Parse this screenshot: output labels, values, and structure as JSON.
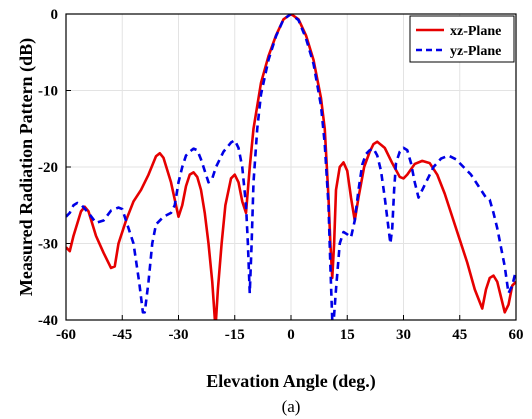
{
  "chart_data": {
    "type": "line",
    "xlabel": "Elevation Angle (deg.)",
    "ylabel": "Measured Radiation Pattern (dB)",
    "caption": "(a)",
    "xlim": [
      -60,
      60
    ],
    "ylim": [
      -40,
      0
    ],
    "xticks": [
      "-60",
      "-45",
      "-30",
      "-15",
      "0",
      "15",
      "30",
      "45",
      "60"
    ],
    "yticks": [
      "0",
      "-10",
      "-20",
      "-30",
      "-40"
    ],
    "grid": true,
    "legend_position": "top-right",
    "series": [
      {
        "name": "xz-Plane",
        "color": "#e60000",
        "style": "solid",
        "points": [
          [
            -60,
            -30.5
          ],
          [
            -59,
            -31
          ],
          [
            -58,
            -29
          ],
          [
            -56,
            -25.8
          ],
          [
            -55,
            -25.2
          ],
          [
            -54,
            -25.8
          ],
          [
            -52,
            -29
          ],
          [
            -50,
            -31.2
          ],
          [
            -48,
            -33.2
          ],
          [
            -47,
            -33
          ],
          [
            -46,
            -30
          ],
          [
            -44,
            -27
          ],
          [
            -42,
            -24.5
          ],
          [
            -40,
            -23
          ],
          [
            -38,
            -21
          ],
          [
            -36,
            -18.6
          ],
          [
            -35,
            -18.2
          ],
          [
            -34,
            -18.8
          ],
          [
            -32,
            -22
          ],
          [
            -30,
            -26.5
          ],
          [
            -29,
            -25
          ],
          [
            -28,
            -22.5
          ],
          [
            -27,
            -21
          ],
          [
            -26,
            -20.7
          ],
          [
            -25,
            -21.3
          ],
          [
            -24,
            -23
          ],
          [
            -23,
            -26
          ],
          [
            -22,
            -30
          ],
          [
            -21,
            -35
          ],
          [
            -20.3,
            -40
          ],
          [
            -20,
            -40
          ],
          [
            -19.5,
            -36
          ],
          [
            -18.5,
            -30
          ],
          [
            -17.5,
            -25
          ],
          [
            -16,
            -21.5
          ],
          [
            -15,
            -21
          ],
          [
            -14,
            -22
          ],
          [
            -13,
            -24.5
          ],
          [
            -12,
            -26
          ],
          [
            -11,
            -20
          ],
          [
            -10,
            -15
          ],
          [
            -9,
            -12
          ],
          [
            -8,
            -9
          ],
          [
            -6,
            -5.5
          ],
          [
            -4,
            -2.8
          ],
          [
            -2,
            -0.7
          ],
          [
            0,
            0
          ],
          [
            2,
            -0.7
          ],
          [
            4,
            -2.8
          ],
          [
            6,
            -6
          ],
          [
            8,
            -11
          ],
          [
            9,
            -15
          ],
          [
            10,
            -24
          ],
          [
            10.5,
            -30
          ],
          [
            11,
            -34.5
          ],
          [
            11.5,
            -30
          ],
          [
            12,
            -23
          ],
          [
            13,
            -20
          ],
          [
            14,
            -19.4
          ],
          [
            15,
            -20.5
          ],
          [
            16,
            -24
          ],
          [
            17,
            -27
          ],
          [
            18,
            -24
          ],
          [
            19.5,
            -20
          ],
          [
            21,
            -18
          ],
          [
            22,
            -17
          ],
          [
            23,
            -16.7
          ],
          [
            25,
            -17.5
          ],
          [
            27,
            -19.5
          ],
          [
            29,
            -21.3
          ],
          [
            30,
            -21.5
          ],
          [
            31,
            -21
          ],
          [
            33,
            -19.6
          ],
          [
            35,
            -19.2
          ],
          [
            37,
            -19.5
          ],
          [
            39,
            -21
          ],
          [
            41,
            -23.5
          ],
          [
            43,
            -26.5
          ],
          [
            45,
            -29.5
          ],
          [
            47,
            -32.5
          ],
          [
            49,
            -36
          ],
          [
            51,
            -38.5
          ],
          [
            52,
            -36
          ],
          [
            53,
            -34.5
          ],
          [
            54,
            -34.2
          ],
          [
            55,
            -35
          ],
          [
            56,
            -37
          ],
          [
            57,
            -39
          ],
          [
            58,
            -38
          ],
          [
            59,
            -35.5
          ],
          [
            60,
            -35
          ]
        ]
      },
      {
        "name": "yz-Plane",
        "color": "#0000e6",
        "style": "dashed",
        "points": [
          [
            -60,
            -26.5
          ],
          [
            -59,
            -26
          ],
          [
            -58,
            -25
          ],
          [
            -57,
            -24.7
          ],
          [
            -56,
            -24.9
          ],
          [
            -54,
            -26
          ],
          [
            -52,
            -27.3
          ],
          [
            -50,
            -27
          ],
          [
            -48,
            -25.7
          ],
          [
            -46,
            -25.3
          ],
          [
            -45,
            -25.5
          ],
          [
            -44,
            -27
          ],
          [
            -42,
            -30
          ],
          [
            -40.5,
            -35
          ],
          [
            -39.5,
            -39
          ],
          [
            -39,
            -39
          ],
          [
            -38,
            -35
          ],
          [
            -37,
            -30
          ],
          [
            -36,
            -27.5
          ],
          [
            -34,
            -26.5
          ],
          [
            -32,
            -26
          ],
          [
            -31,
            -25
          ],
          [
            -30,
            -22
          ],
          [
            -29,
            -20
          ],
          [
            -28,
            -18.5
          ],
          [
            -27,
            -18
          ],
          [
            -26,
            -17.6
          ],
          [
            -25,
            -17.8
          ],
          [
            -24,
            -19
          ],
          [
            -22,
            -22
          ],
          [
            -21,
            -21.5
          ],
          [
            -20,
            -20
          ],
          [
            -18,
            -18
          ],
          [
            -16,
            -16.8
          ],
          [
            -15,
            -16.5
          ],
          [
            -14,
            -17.5
          ],
          [
            -13,
            -20
          ],
          [
            -12,
            -25
          ],
          [
            -11.5,
            -30
          ],
          [
            -11,
            -36.5
          ],
          [
            -10.5,
            -30
          ],
          [
            -10,
            -22
          ],
          [
            -9,
            -15
          ],
          [
            -8,
            -10.5
          ],
          [
            -6,
            -6
          ],
          [
            -4,
            -2.9
          ],
          [
            -2,
            -0.7
          ],
          [
            0,
            0
          ],
          [
            2,
            -0.8
          ],
          [
            4,
            -3.2
          ],
          [
            6,
            -6.5
          ],
          [
            8,
            -12
          ],
          [
            9,
            -17
          ],
          [
            10,
            -25
          ],
          [
            10.5,
            -33
          ],
          [
            11,
            -40
          ],
          [
            11.4,
            -40
          ],
          [
            12,
            -36
          ],
          [
            13,
            -30
          ],
          [
            14,
            -28.5
          ],
          [
            15,
            -28.8
          ],
          [
            16,
            -29.2
          ],
          [
            17,
            -27
          ],
          [
            18,
            -23
          ],
          [
            19,
            -19.7
          ],
          [
            20,
            -18.3
          ],
          [
            21,
            -17.8
          ],
          [
            22,
            -17.6
          ],
          [
            23,
            -18.5
          ],
          [
            24,
            -20.5
          ],
          [
            25,
            -24
          ],
          [
            26,
            -28
          ],
          [
            26.5,
            -30
          ],
          [
            27,
            -28
          ],
          [
            27.5,
            -23
          ],
          [
            28,
            -19.5
          ],
          [
            29,
            -18
          ],
          [
            30,
            -17.5
          ],
          [
            31,
            -17.8
          ],
          [
            32,
            -19.5
          ],
          [
            33,
            -22
          ],
          [
            34,
            -24
          ],
          [
            35,
            -23
          ],
          [
            36,
            -22
          ],
          [
            38,
            -20
          ],
          [
            40,
            -18.9
          ],
          [
            42,
            -18.5
          ],
          [
            44,
            -19
          ],
          [
            46,
            -20
          ],
          [
            48,
            -21
          ],
          [
            50,
            -22.5
          ],
          [
            52,
            -24
          ],
          [
            53,
            -24.3
          ],
          [
            54,
            -26
          ],
          [
            55,
            -28
          ],
          [
            56,
            -30.5
          ],
          [
            57,
            -33
          ],
          [
            58,
            -36.5
          ],
          [
            59,
            -35.5
          ],
          [
            60,
            -33.5
          ]
        ]
      }
    ]
  }
}
